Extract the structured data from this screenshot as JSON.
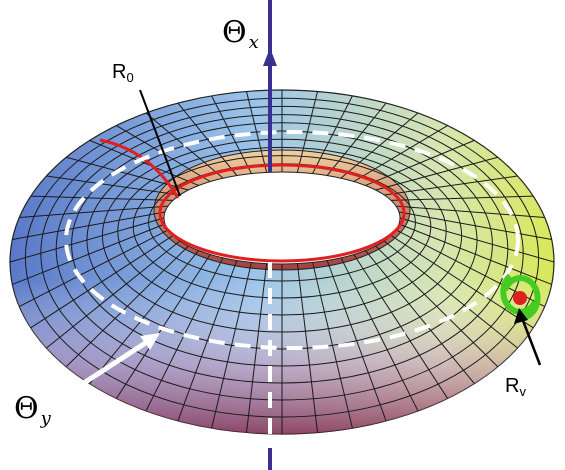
{
  "labels": {
    "theta_x": {
      "symbol": "Θ",
      "sub": "x"
    },
    "theta_y": {
      "symbol": "Θ",
      "sub": "y"
    },
    "r0": {
      "symbol": "R",
      "sub": "0"
    },
    "rv": {
      "symbol": "R",
      "sub": "v"
    }
  }
}
